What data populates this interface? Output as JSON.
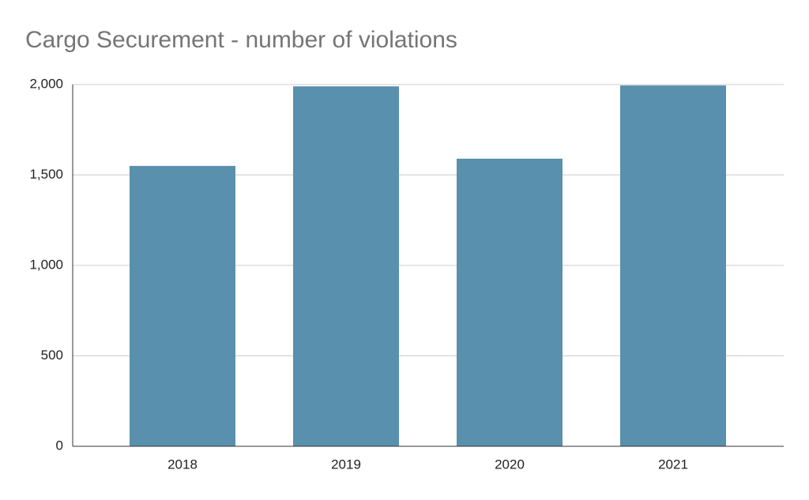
{
  "chart_data": {
    "type": "bar",
    "title": "Cargo Securement - number of violations",
    "categories": [
      "2018",
      "2019",
      "2020",
      "2021"
    ],
    "values": [
      1550,
      1990,
      1590,
      1995
    ],
    "color": "#5990ae",
    "ylim": [
      0,
      2000
    ],
    "yticks": [
      0,
      500,
      {
        "value": 1000,
        "label": "1,000"
      },
      {
        "value": 1500,
        "label": "1,500"
      },
      {
        "value": 2000,
        "label": "2,000"
      }
    ],
    "grid": true
  }
}
